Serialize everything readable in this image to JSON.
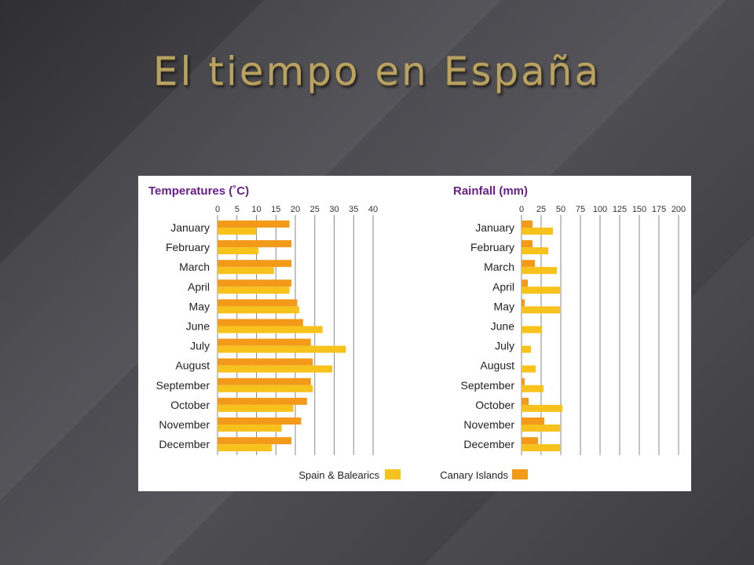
{
  "slide": {
    "title": "El tiempo en España"
  },
  "colors": {
    "spain": "#f8c21c",
    "canary": "#f39a1a",
    "title_text": "#6a1f8a",
    "grid": "#8a8a8a"
  },
  "legend": {
    "spain": "Spain & Balearics",
    "canary": "Canary Islands"
  },
  "chart_data": [
    {
      "type": "bar",
      "orientation": "horizontal",
      "title": "Temperatures (˚C)",
      "categories": [
        "January",
        "February",
        "March",
        "April",
        "May",
        "June",
        "July",
        "August",
        "September",
        "October",
        "November",
        "December"
      ],
      "xticks": [
        "0",
        "5",
        "10",
        "15",
        "20",
        "25",
        "30",
        "35",
        "40"
      ],
      "xlim": [
        0,
        40
      ],
      "grid": true,
      "series": [
        {
          "name": "Canary Islands",
          "color_key": "canary",
          "values": [
            18.5,
            19,
            19,
            19,
            20.5,
            22,
            24,
            24.5,
            24,
            23,
            21.5,
            19
          ]
        },
        {
          "name": "Spain & Balearics",
          "color_key": "spain",
          "values": [
            10,
            10.5,
            14.5,
            18.5,
            21,
            27,
            33,
            29.5,
            24.5,
            19.5,
            16.5,
            14
          ]
        }
      ]
    },
    {
      "type": "bar",
      "orientation": "horizontal",
      "title": "Rainfall (mm)",
      "categories": [
        "January",
        "February",
        "March",
        "April",
        "May",
        "June",
        "July",
        "August",
        "September",
        "October",
        "November",
        "December"
      ],
      "xticks": [
        "0",
        "25",
        "50",
        "75",
        "100",
        "125",
        "150",
        "175",
        "200"
      ],
      "xlim": [
        0,
        200
      ],
      "grid": true,
      "series": [
        {
          "name": "Canary Islands",
          "color_key": "canary",
          "values": [
            14,
            14,
            17,
            8,
            4,
            0,
            0,
            0,
            4,
            9,
            29,
            21
          ]
        },
        {
          "name": "Spain & Balearics",
          "color_key": "spain",
          "values": [
            40,
            34,
            45,
            49,
            49,
            26,
            12,
            18,
            28,
            52,
            49,
            49
          ]
        }
      ]
    }
  ]
}
